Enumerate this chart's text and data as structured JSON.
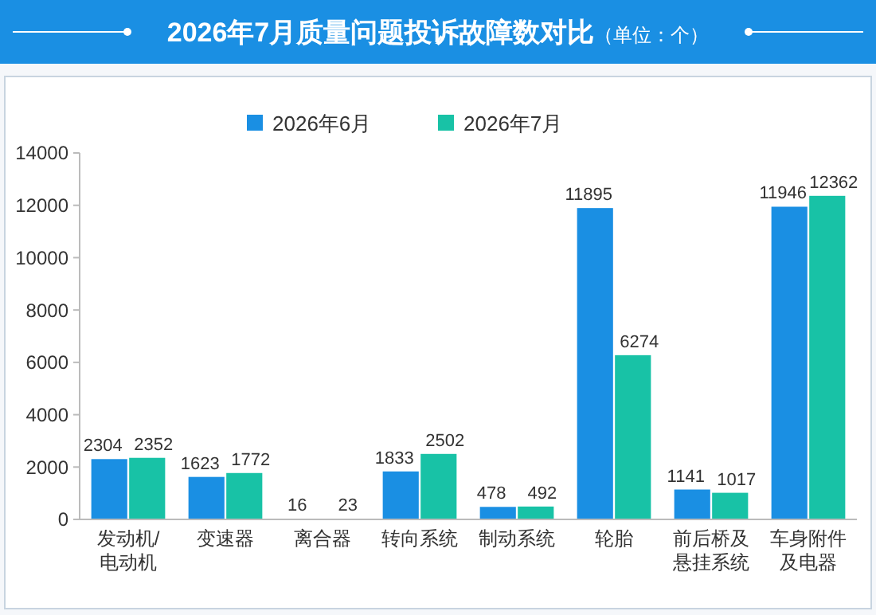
{
  "chart_data": {
    "type": "bar",
    "title": "2026年7月质量问题投诉故障数对比",
    "subtitle": "（单位：个）",
    "categories": [
      "发动机/电动机",
      "变速器",
      "离合器",
      "转向系统",
      "制动系统",
      "轮胎",
      "前后桥及悬挂系统",
      "车身附件及电器"
    ],
    "series": [
      {
        "name": "2026年6月",
        "color": "#1a8fe3",
        "values": [
          2304,
          1623,
          16,
          1833,
          478,
          11895,
          1141,
          11946
        ]
      },
      {
        "name": "2026年7月",
        "color": "#18c2a6",
        "values": [
          2352,
          1772,
          23,
          2502,
          492,
          6274,
          1017,
          12362
        ]
      }
    ],
    "ylim": [
      0,
      14000
    ],
    "yticks": [
      0,
      2000,
      4000,
      6000,
      8000,
      10000,
      12000,
      14000
    ],
    "grid": false,
    "legend": "top",
    "data_labels": true
  }
}
